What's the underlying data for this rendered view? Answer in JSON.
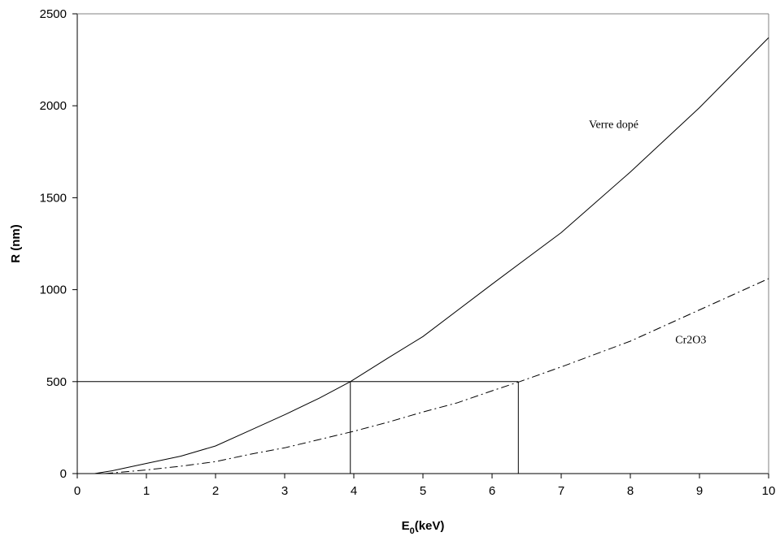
{
  "chart_data": {
    "type": "line",
    "xlabel": "E",
    "xlabel_sub": "0",
    "xlabel_unit": "(keV)",
    "ylabel": "R (nm)",
    "xlim": [
      0,
      10
    ],
    "ylim": [
      0,
      2500
    ],
    "x_ticks": [
      0,
      1,
      2,
      3,
      4,
      5,
      6,
      7,
      8,
      9,
      10
    ],
    "y_ticks": [
      0,
      500,
      1000,
      1500,
      2000,
      2500
    ],
    "x_tick_labels": [
      "0",
      "1",
      "2",
      "3",
      "4",
      "5",
      "6",
      "7",
      "8",
      "9",
      "10"
    ],
    "y_tick_labels": [
      "0",
      "500",
      "1000",
      "1500",
      "2000",
      "2500"
    ],
    "grid": false,
    "legend": "none",
    "series": [
      {
        "name": "Verre dopé",
        "style": "solid",
        "x": [
          0.25,
          0.5,
          1,
          1.5,
          2,
          2.5,
          3,
          3.5,
          3.95,
          4.5,
          5,
          6,
          7,
          8,
          9,
          10
        ],
        "y": [
          0,
          15,
          55,
          95,
          150,
          235,
          320,
          410,
          500,
          630,
          745,
          1030,
          1310,
          1640,
          1990,
          2370
        ]
      },
      {
        "name": "Cr2O3",
        "style": "dash-dot",
        "x": [
          0.4,
          1,
          1.5,
          2,
          2.5,
          3,
          3.5,
          4,
          4.5,
          5,
          5.5,
          6,
          6.4,
          7,
          8,
          9,
          10
        ],
        "y": [
          0,
          20,
          40,
          65,
          105,
          140,
          185,
          230,
          280,
          335,
          385,
          450,
          500,
          580,
          720,
          890,
          1060
        ]
      }
    ],
    "reference_lines": [
      {
        "y": 500,
        "x": 3.95
      },
      {
        "y": 500,
        "x": 6.38
      }
    ],
    "annotations": [
      {
        "text": "Verre dopé",
        "x": 7.4,
        "y": 1880
      },
      {
        "text": "Cr2O3",
        "x": 8.65,
        "y": 710
      }
    ]
  }
}
